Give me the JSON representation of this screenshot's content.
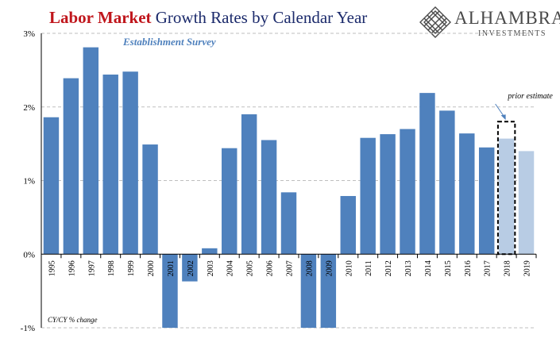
{
  "header": {
    "title_part1": "Labor Market",
    "title_part2": " Growth Rates by Calendar Year"
  },
  "logo": {
    "name": "ALHAMBRA",
    "subtitle": "INVESTMENTS",
    "color": "#4a4a4a"
  },
  "chart_data": {
    "type": "bar",
    "subtitle": "Establishment Survey",
    "note": "CY/CY % change",
    "annotation": "prior estimate",
    "categories": [
      "1995",
      "1996",
      "1997",
      "1998",
      "1999",
      "2000",
      "2001",
      "2002",
      "2003",
      "2004",
      "2005",
      "2006",
      "2007",
      "2008",
      "2009",
      "2010",
      "2011",
      "2012",
      "2013",
      "2014",
      "2015",
      "2016",
      "2017",
      "2018",
      "2019"
    ],
    "series": [
      {
        "values": [
          1.86,
          2.39,
          2.81,
          2.44,
          2.48,
          1.49,
          -1.0,
          -0.37,
          0.08,
          1.44,
          1.9,
          1.55,
          0.84,
          -1.0,
          -1.0,
          0.79,
          1.58,
          1.63,
          1.7,
          2.19,
          1.95,
          1.64,
          1.45,
          1.57,
          1.4
        ],
        "colors_by_point": [
          "#4f81bd",
          "#4f81bd",
          "#4f81bd",
          "#4f81bd",
          "#4f81bd",
          "#4f81bd",
          "#4f81bd",
          "#4f81bd",
          "#4f81bd",
          "#4f81bd",
          "#4f81bd",
          "#4f81bd",
          "#4f81bd",
          "#4f81bd",
          "#4f81bd",
          "#4f81bd",
          "#4f81bd",
          "#4f81bd",
          "#4f81bd",
          "#4f81bd",
          "#4f81bd",
          "#4f81bd",
          "#4f81bd",
          "#b8cce4",
          "#b8cce4"
        ]
      }
    ],
    "prior_estimate": {
      "category": "2018",
      "value": 1.8
    },
    "yticks": [
      "3%",
      "2%",
      "1%",
      "0%",
      "-1%"
    ],
    "ytick_values": [
      3,
      2,
      1,
      0,
      -1
    ],
    "ylim": [
      -1,
      3
    ],
    "grid": true,
    "colors": {
      "bar": "#4f81bd",
      "bar_light": "#b8cce4",
      "subtitle": "#4f81bd",
      "arrow": "#4f81bd",
      "grid": "#bfbfbf",
      "axis": "#000000"
    }
  }
}
